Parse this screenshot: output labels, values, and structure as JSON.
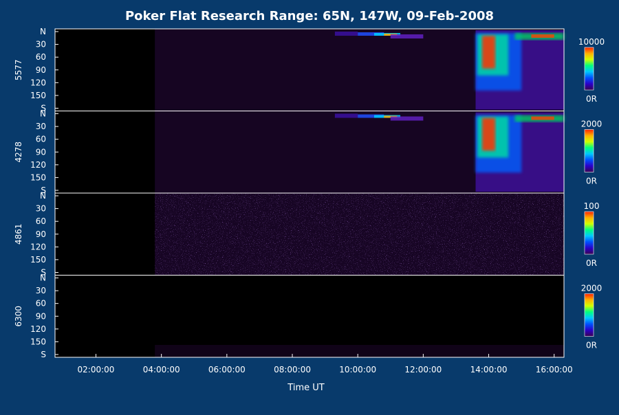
{
  "colors": {
    "background": "#083a6b",
    "panel": "#000000",
    "separator": "#ffffff",
    "colormap": [
      "#3a0050",
      "#2a00c8",
      "#0050ff",
      "#00c8ff",
      "#00ff80",
      "#d0ff00",
      "#ffb000",
      "#ff2000"
    ]
  },
  "chart_data": {
    "type": "heatmap",
    "title": "Poker Flat Research Range: 65N, 147W, 09-Feb-2008",
    "xlabel": "Time UT",
    "x_ticks": [
      "02:00:00",
      "04:00:00",
      "06:00:00",
      "08:00:00",
      "10:00:00",
      "12:00:00",
      "14:00:00",
      "16:00:00"
    ],
    "xlim_hours": [
      0.75,
      16.3
    ],
    "y_ticks": [
      "N",
      "30",
      "60",
      "90",
      "120",
      "150",
      "S"
    ],
    "ylim": [
      0,
      180
    ],
    "panels": [
      {
        "label": "5577",
        "colorbar_max": "10000",
        "colorbar_min": "0R"
      },
      {
        "label": "4278",
        "colorbar_max": "2000",
        "colorbar_min": "0R"
      },
      {
        "label": "4861",
        "colorbar_max": "100",
        "colorbar_min": "0R"
      },
      {
        "label": "6300",
        "colorbar_max": "2000",
        "colorbar_min": "0R"
      }
    ]
  }
}
